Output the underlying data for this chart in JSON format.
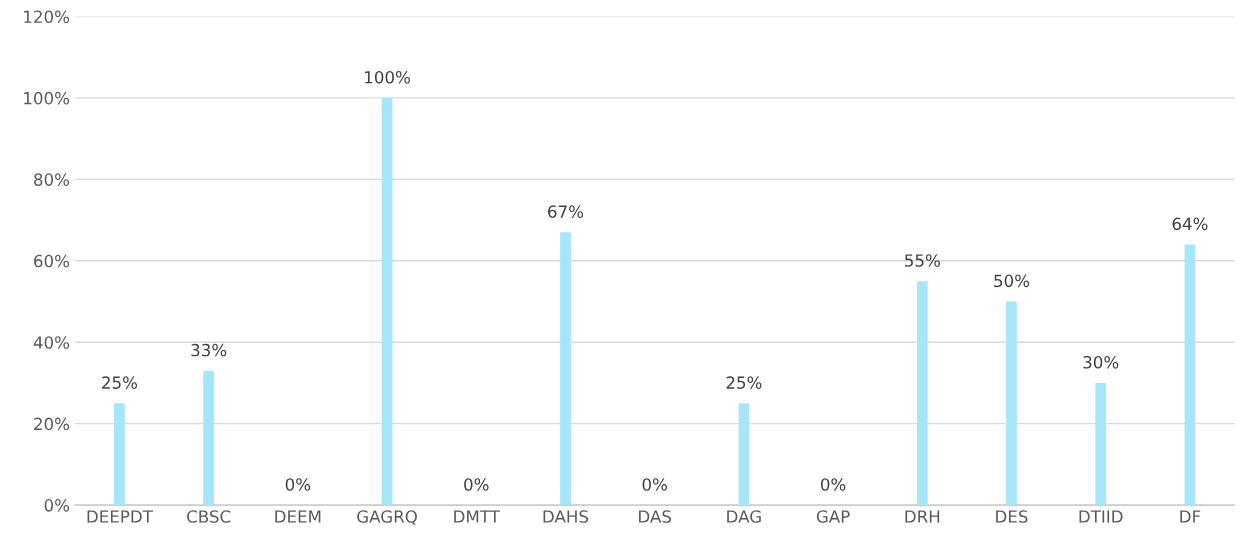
{
  "chart_data": {
    "type": "bar",
    "categories": [
      "DEEPDT",
      "CBSC",
      "DEEM",
      "GAGRQ",
      "DMTT",
      "DAHS",
      "DAS",
      "DAG",
      "GAP",
      "DRH",
      "DES",
      "DTIID",
      "DF"
    ],
    "values": [
      25,
      33,
      0,
      100,
      0,
      67,
      0,
      25,
      0,
      55,
      50,
      30,
      64
    ],
    "value_labels": [
      "25%",
      "33%",
      "0%",
      "100%",
      "0%",
      "67%",
      "0%",
      "25%",
      "0%",
      "55%",
      "50%",
      "30%",
      "64%"
    ],
    "color": "#a6e6fb",
    "ylim": [
      0,
      120
    ],
    "yticks": [
      {
        "value": 0,
        "label": "0%"
      },
      {
        "value": 20,
        "label": "20%"
      },
      {
        "value": 40,
        "label": "40%"
      },
      {
        "value": 60,
        "label": "60%"
      },
      {
        "value": 80,
        "label": "80%"
      },
      {
        "value": 100,
        "label": "100%"
      },
      {
        "value": 120,
        "label": "120%"
      }
    ],
    "grid": "y"
  }
}
